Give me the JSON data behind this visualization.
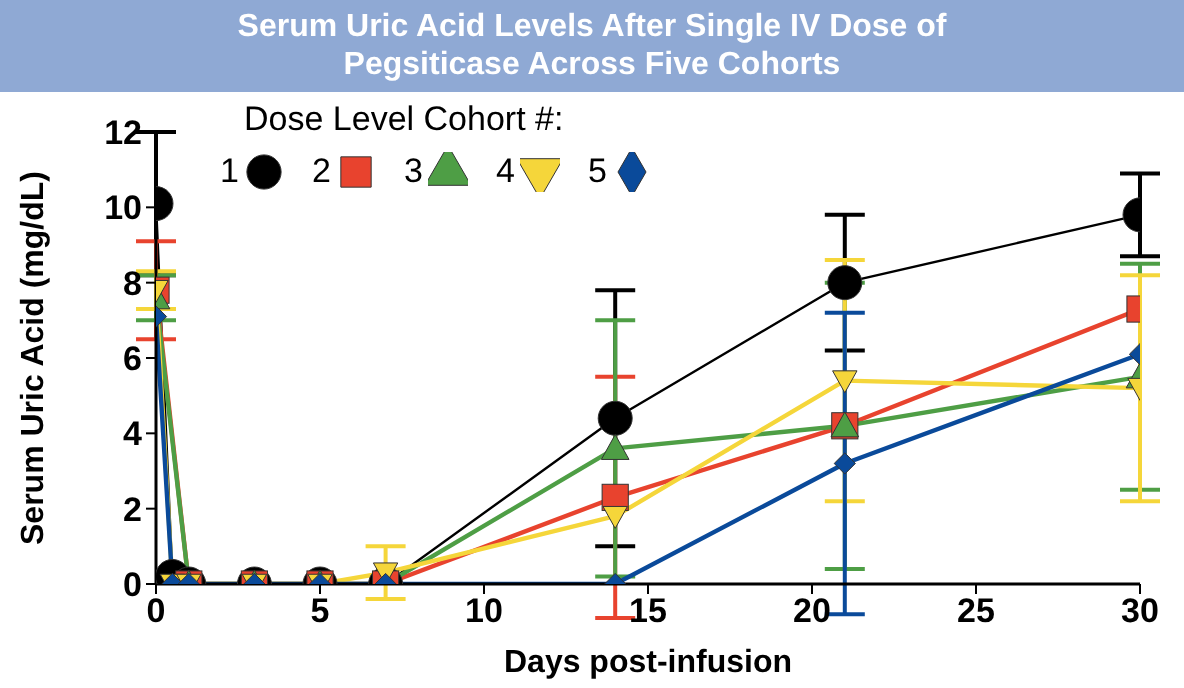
{
  "chart_data": {
    "type": "line",
    "title": "Serum Uric Acid Levels After Single IV Dose of Pegsiticase Across Five Cohorts",
    "xlabel": "Days post-infusion",
    "ylabel": "Serum Uric Acid (mg/dL)",
    "legend_title": "Dose Level Cohort #:",
    "x": [
      0,
      0.5,
      1,
      3,
      5,
      7,
      14,
      21,
      30
    ],
    "xlim": [
      0,
      30
    ],
    "xticks": [
      0,
      5,
      10,
      15,
      20,
      25,
      30
    ],
    "ylim": [
      0,
      12
    ],
    "yticks": [
      0,
      2,
      4,
      6,
      8,
      10,
      12
    ],
    "legend": "top left",
    "line_style": "solid",
    "series": [
      {
        "name": "1",
        "color": "#000000",
        "marker": "circle",
        "values": [
          10.1,
          0.2,
          0,
          0,
          0,
          0,
          4.4,
          8.0,
          9.8
        ],
        "errors": [
          1.9,
          null,
          null,
          null,
          null,
          null,
          3.4,
          1.8,
          1.1
        ]
      },
      {
        "name": "2",
        "color": "#e8432e",
        "marker": "square",
        "values": [
          7.8,
          null,
          0,
          0,
          0,
          0,
          2.3,
          4.2,
          7.3
        ],
        "errors": [
          1.3,
          null,
          null,
          null,
          null,
          null,
          3.2,
          null,
          null
        ]
      },
      {
        "name": "3",
        "color": "#4e9e45",
        "marker": "triangle",
        "values": [
          7.6,
          null,
          0,
          0,
          0,
          0,
          3.6,
          4.2,
          5.5
        ],
        "errors": [
          0.6,
          null,
          null,
          null,
          null,
          null,
          3.4,
          3.8,
          3.0
        ]
      },
      {
        "name": "4",
        "color": "#f5d63a",
        "marker": "triangle-down",
        "values": [
          7.8,
          0,
          0,
          0,
          0,
          0.3,
          1.8,
          5.4,
          5.2
        ],
        "errors": [
          0.5,
          null,
          null,
          null,
          null,
          0.7,
          null,
          3.2,
          3.0
        ]
      },
      {
        "name": "5",
        "color": "#0a4a9a",
        "marker": "diamond",
        "values": [
          7.1,
          0,
          0,
          0,
          0,
          0,
          0,
          3.2,
          6.1
        ],
        "errors": [
          null,
          null,
          null,
          null,
          null,
          null,
          null,
          4.0,
          null
        ]
      }
    ]
  }
}
